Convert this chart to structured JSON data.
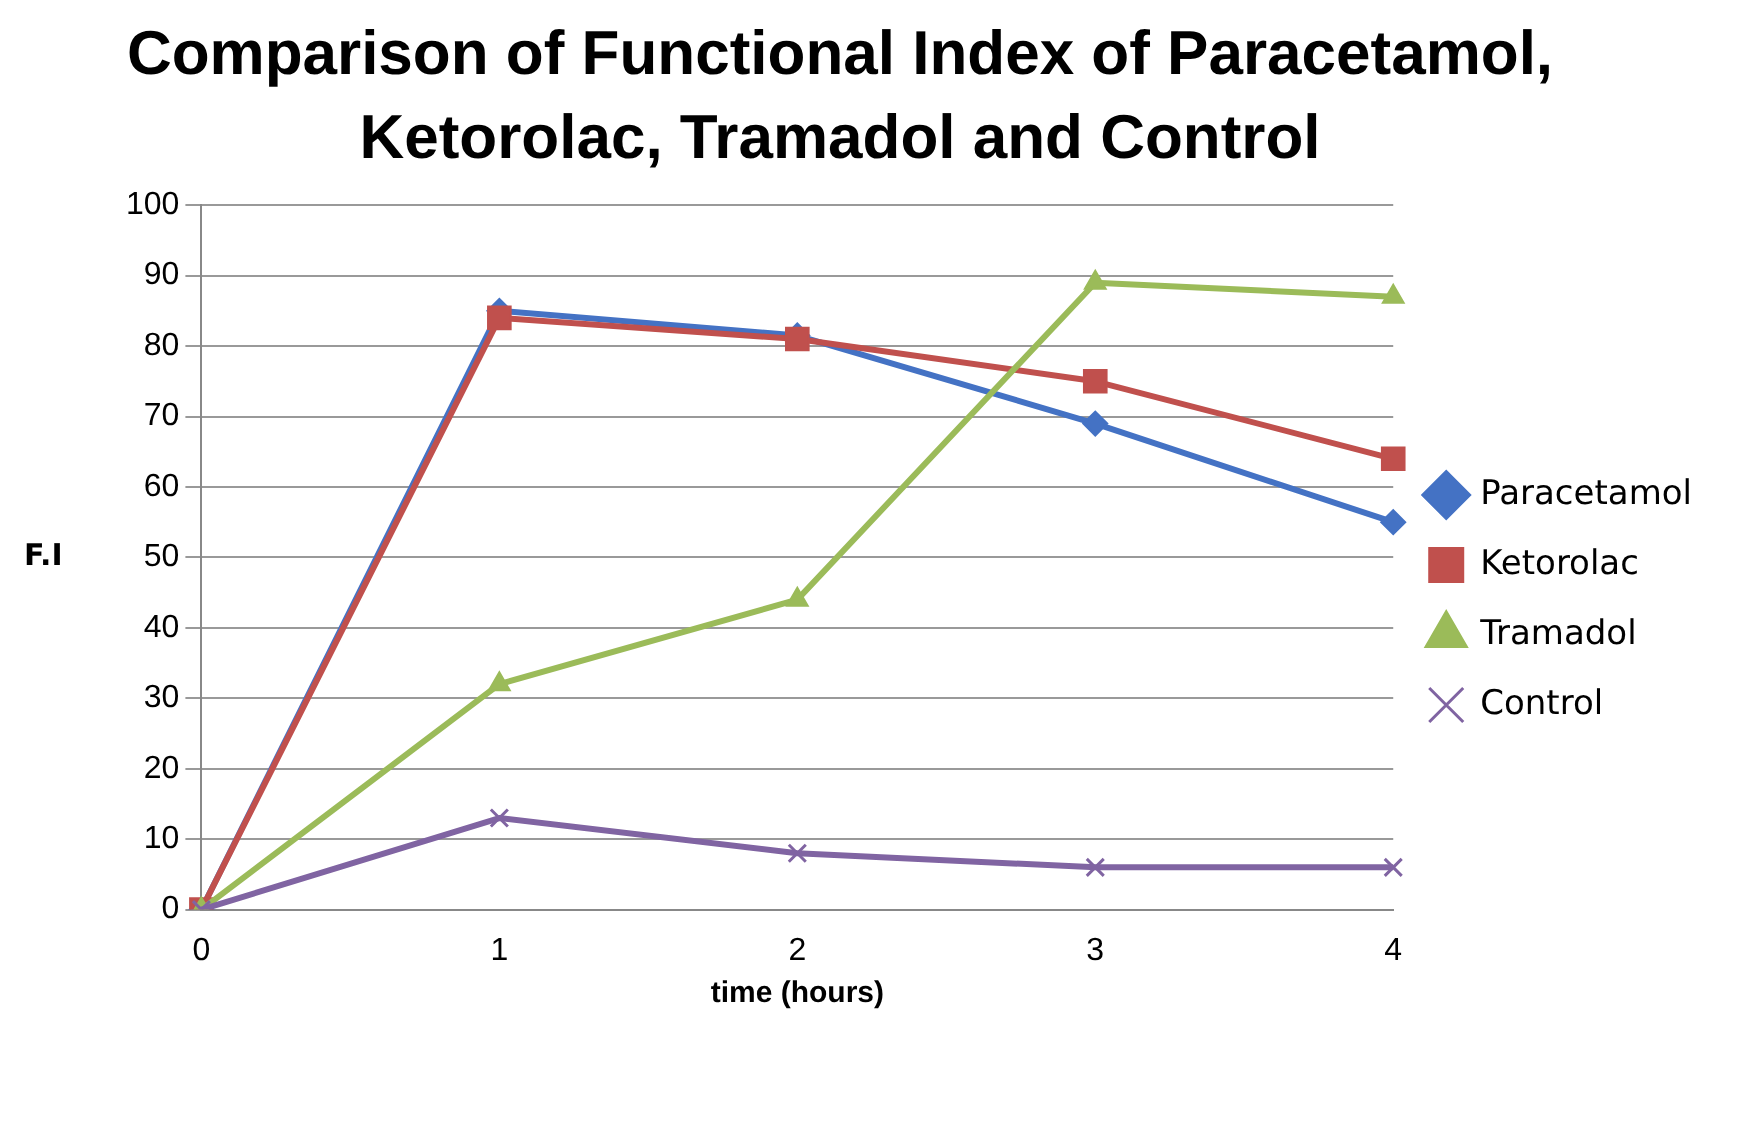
{
  "chart_data": {
    "type": "line",
    "title": "Comparison of Functional Index of Paracetamol, Ketorolac, Tramadol and Control",
    "xlabel": "time (hours)",
    "ylabel": "F.I",
    "categories": [
      "0",
      "1",
      "2",
      "3",
      "4"
    ],
    "ylim": [
      0,
      100
    ],
    "yticks": [
      0,
      10,
      20,
      30,
      40,
      50,
      60,
      70,
      80,
      90,
      100
    ],
    "grid": "y",
    "legend": "right",
    "series": [
      {
        "name": "Paracetamol",
        "color": "#4472c4",
        "marker": "diamond",
        "values": [
          0,
          85,
          81.5,
          69,
          55
        ]
      },
      {
        "name": "Ketorolac",
        "color": "#c0504d",
        "marker": "square",
        "values": [
          0,
          84,
          81,
          75,
          64
        ]
      },
      {
        "name": "Tramadol",
        "color": "#9bbb59",
        "marker": "triangle",
        "values": [
          0,
          32,
          44,
          89,
          87
        ]
      },
      {
        "name": "Control",
        "color": "#8064a2",
        "marker": "cross",
        "values": [
          0,
          13,
          8,
          6,
          6
        ]
      }
    ]
  }
}
